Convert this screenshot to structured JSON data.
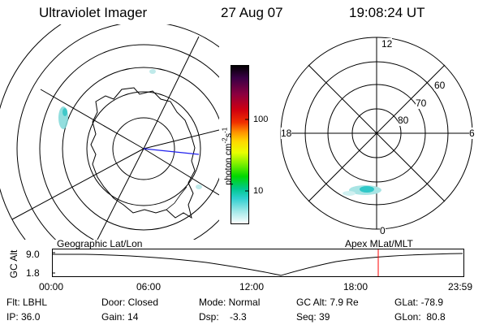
{
  "header": {
    "instrument": "Ultraviolet Imager",
    "date": "27 Aug 07",
    "time": "19:08:24 UT"
  },
  "colorbar": {
    "unit_label": "photon cm",
    "unit_exp1": "-2",
    "unit_s": "s",
    "unit_exp2": "-1",
    "ticks": [
      "100",
      "10"
    ],
    "colors": [
      "#000000",
      "#2a0033",
      "#5a0a5a",
      "#7a0030",
      "#a00010",
      "#c80000",
      "#e01010",
      "#f04000",
      "#f88000",
      "#ffb000",
      "#ffe000",
      "#e0ff00",
      "#a0f000",
      "#40e000",
      "#00d000",
      "#00c880",
      "#00c8c8",
      "#80e0e0",
      "#c0f0f0",
      "#ffffff"
    ]
  },
  "left_map": {
    "caption": "Geographic Lat/Lon"
  },
  "right_map": {
    "caption": "Apex MLat/MLT",
    "mlt_labels": [
      "12",
      "18",
      "6",
      "0"
    ],
    "lat_labels": [
      "60",
      "70",
      "80"
    ]
  },
  "timeline": {
    "axis_label": "GC Alt",
    "y_ticks": [
      "9.0",
      "1.8"
    ],
    "x_ticks": [
      "00:00",
      "06:00",
      "12:00",
      "18:00",
      "23:59"
    ],
    "marker_color": "#ff0000"
  },
  "info": {
    "flt": "Flt: LBHL",
    "ip": "IP: 36.0",
    "door": "Door: Closed",
    "gain": "Gain: 14",
    "mode": "Mode: Normal",
    "dsp": "Dsp:    -3.3",
    "gcalt": "GC Alt: 7.9 Re",
    "seq": "Seq: 39",
    "glat": "GLat: -78.9",
    "glon": "GLon:  80.8"
  }
}
